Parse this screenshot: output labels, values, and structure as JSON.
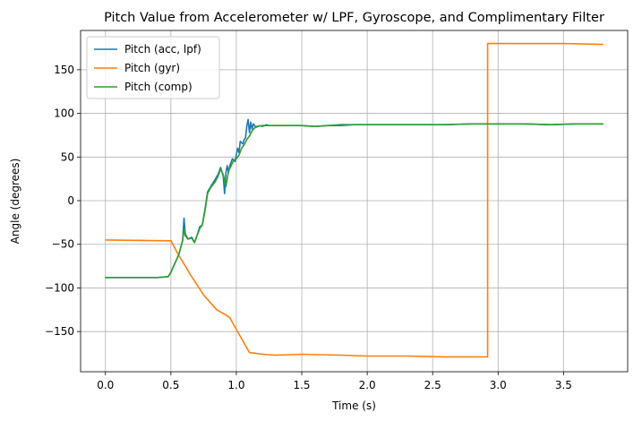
{
  "chart_data": {
    "type": "line",
    "title": "Pitch Value from Accelerometer w/ LPF, Gyroscope, and Complimentary Filter",
    "xlabel": "Time (s)",
    "ylabel": "Angle (degrees)",
    "xlim": [
      -0.19,
      3.99
    ],
    "ylim": [
      -196,
      195
    ],
    "xticks": [
      0.0,
      0.5,
      1.0,
      1.5,
      2.0,
      2.5,
      3.0,
      3.5
    ],
    "xtick_labels": [
      "0.0",
      "0.5",
      "1.0",
      "1.5",
      "2.0",
      "2.5",
      "3.0",
      "3.5"
    ],
    "yticks": [
      -150,
      -100,
      -50,
      0,
      50,
      100,
      150
    ],
    "ytick_labels": [
      "−150",
      "−100",
      "−50",
      "0",
      "50",
      "100",
      "150"
    ],
    "grid": true,
    "legend_position": "top-left",
    "series": [
      {
        "name": "Pitch (acc, lpf)",
        "color": "#1f77b4",
        "x": [
          0.0,
          0.1,
          0.2,
          0.3,
          0.4,
          0.48,
          0.5,
          0.53,
          0.56,
          0.59,
          0.6,
          0.61,
          0.63,
          0.66,
          0.68,
          0.7,
          0.72,
          0.74,
          0.76,
          0.78,
          0.8,
          0.82,
          0.84,
          0.86,
          0.88,
          0.9,
          0.91,
          0.92,
          0.93,
          0.94,
          0.95,
          0.97,
          0.99,
          1.01,
          1.02,
          1.03,
          1.05,
          1.06,
          1.07,
          1.08,
          1.09,
          1.1,
          1.11,
          1.12,
          1.13,
          1.15,
          1.18,
          1.2,
          1.23,
          1.25,
          1.3,
          1.4,
          1.5,
          1.6,
          1.7,
          1.8,
          1.9,
          2.0,
          2.2,
          2.4,
          2.6,
          2.8,
          3.0,
          3.2,
          3.4,
          3.6,
          3.8
        ],
        "y": [
          -88,
          -88,
          -88,
          -88,
          -88,
          -87,
          -82,
          -72,
          -62,
          -45,
          -20,
          -38,
          -44,
          -42,
          -48,
          -40,
          -30,
          -28,
          -10,
          10,
          15,
          20,
          25,
          30,
          38,
          28,
          8,
          32,
          40,
          32,
          40,
          48,
          45,
          60,
          55,
          68,
          65,
          70,
          72,
          85,
          93,
          78,
          90,
          82,
          88,
          84,
          86,
          85,
          87,
          86,
          86,
          86,
          86,
          85,
          86,
          87,
          87,
          87,
          87,
          87,
          87,
          88,
          88,
          88,
          87,
          88,
          88
        ]
      },
      {
        "name": "Pitch (gyr)",
        "color": "#ff7f0e",
        "x": [
          0.0,
          0.5,
          0.55,
          0.65,
          0.75,
          0.85,
          0.92,
          0.95,
          1.1,
          1.2,
          1.3,
          1.5,
          1.8,
          2.0,
          2.3,
          2.6,
          2.92,
          2.92,
          3.2,
          3.5,
          3.8
        ],
        "y": [
          -45,
          -46,
          -60,
          -85,
          -108,
          -125,
          -131,
          -134,
          -174,
          -176,
          -177,
          -176,
          -177,
          -178,
          -178,
          -179,
          -179,
          180,
          180,
          180,
          179
        ]
      },
      {
        "name": "Pitch (comp)",
        "color": "#2ca02c",
        "x": [
          0.0,
          0.1,
          0.2,
          0.3,
          0.4,
          0.48,
          0.5,
          0.53,
          0.56,
          0.59,
          0.6,
          0.61,
          0.63,
          0.66,
          0.68,
          0.7,
          0.72,
          0.74,
          0.76,
          0.78,
          0.8,
          0.82,
          0.84,
          0.86,
          0.88,
          0.9,
          0.92,
          0.94,
          0.96,
          0.98,
          1.0,
          1.02,
          1.04,
          1.06,
          1.08,
          1.1,
          1.12,
          1.15,
          1.2,
          1.25,
          1.3,
          1.4,
          1.5,
          1.6,
          1.7,
          1.8,
          1.9,
          2.0,
          2.2,
          2.4,
          2.6,
          2.8,
          3.0,
          3.2,
          3.4,
          3.6,
          3.8
        ],
        "y": [
          -88,
          -88,
          -88,
          -88,
          -88,
          -87,
          -82,
          -72,
          -62,
          -46,
          -32,
          -40,
          -44,
          -43,
          -48,
          -40,
          -32,
          -28,
          -12,
          8,
          14,
          18,
          22,
          28,
          36,
          30,
          16,
          34,
          40,
          46,
          48,
          52,
          60,
          64,
          70,
          74,
          80,
          85,
          86,
          86,
          86,
          86,
          86,
          85,
          86,
          86,
          87,
          87,
          87,
          87,
          87,
          88,
          88,
          88,
          87,
          88,
          88
        ]
      }
    ]
  }
}
